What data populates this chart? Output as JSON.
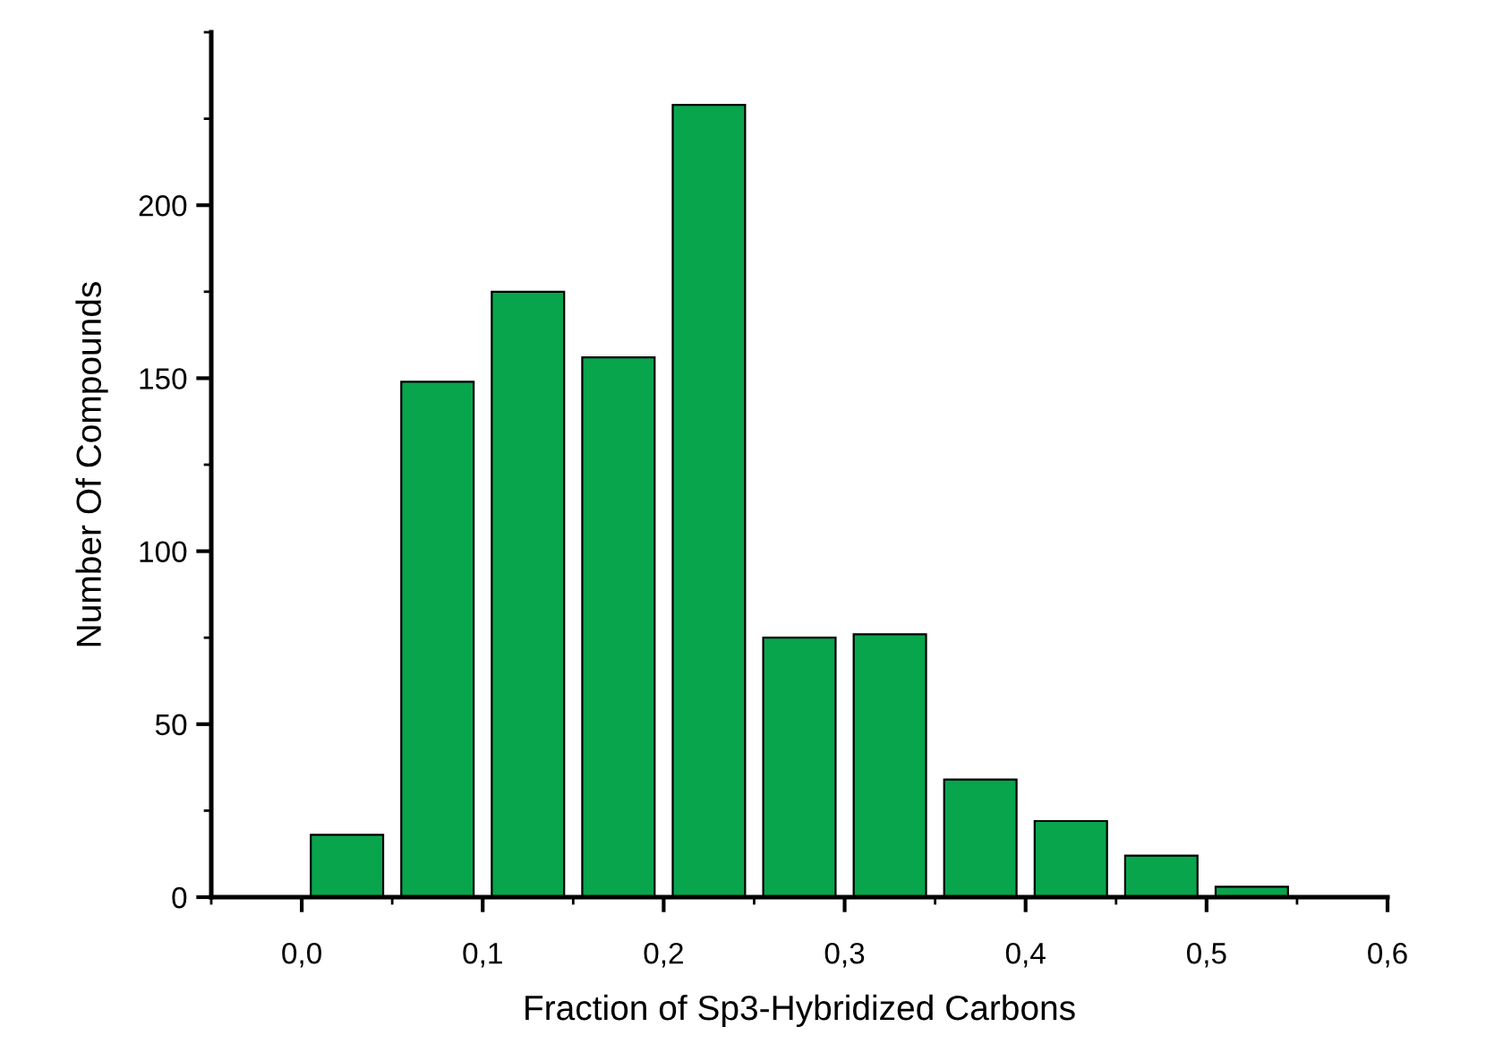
{
  "chart_data": {
    "type": "bar",
    "xlabel": "Fraction of Sp3-Hybridized Carbons",
    "ylabel": "Number Of Compounds",
    "x": [
      0.025,
      0.075,
      0.125,
      0.175,
      0.225,
      0.275,
      0.325,
      0.375,
      0.425,
      0.475,
      0.525
    ],
    "values": [
      18,
      149,
      175,
      156,
      229,
      75,
      76,
      34,
      22,
      12,
      3
    ],
    "color": "#08a54c",
    "xlim": [
      -0.05,
      0.6
    ],
    "xticks": [
      {
        "value": 0.0,
        "label": "0,0"
      },
      {
        "value": 0.1,
        "label": "0,1"
      },
      {
        "value": 0.2,
        "label": "0,2"
      },
      {
        "value": 0.3,
        "label": "0,3"
      },
      {
        "value": 0.4,
        "label": "0,4"
      },
      {
        "value": 0.5,
        "label": "0,5"
      },
      {
        "value": 0.6,
        "label": "0,6"
      }
    ],
    "ylim": [
      0,
      250
    ],
    "yticks": [
      0,
      50,
      100,
      150,
      200
    ],
    "grid": false
  }
}
